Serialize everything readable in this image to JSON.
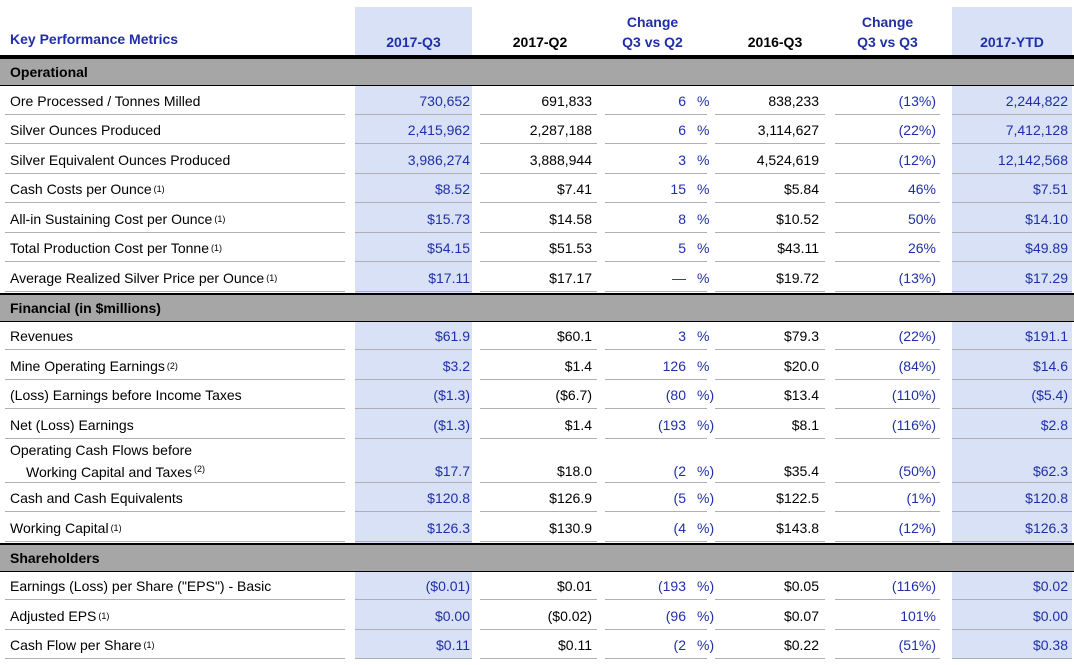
{
  "header": {
    "title": "Key Performance Metrics",
    "col_q3": "2017-Q3",
    "col_q2": "2017-Q2",
    "change1_line1": "Change",
    "change1_line2": "Q3 vs Q2",
    "col_2016q3": "2016-Q3",
    "change2_line1": "Change",
    "change2_line2": "Q3 vs Q3",
    "col_ytd": "2017-YTD"
  },
  "sections": [
    {
      "title": "Operational",
      "rows": [
        {
          "label": "Ore Processed / Tonnes Milled",
          "sup": "",
          "q3": "730,652",
          "q2": "691,833",
          "chg1": "6",
          "chg1_pct": "%",
          "y16": "838,233",
          "chg2": "(13%)",
          "ytd": "2,244,822"
        },
        {
          "label": "Silver Ounces Produced",
          "sup": "",
          "q3": "2,415,962",
          "q2": "2,287,188",
          "chg1": "6",
          "chg1_pct": "%",
          "y16": "3,114,627",
          "chg2": "(22%)",
          "ytd": "7,412,128"
        },
        {
          "label": "Silver Equivalent Ounces Produced",
          "sup": "",
          "q3": "3,986,274",
          "q2": "3,888,944",
          "chg1": "3",
          "chg1_pct": "%",
          "y16": "4,524,619",
          "chg2": "(12%)",
          "ytd": "12,142,568"
        },
        {
          "label": "Cash Costs per Ounce",
          "sup": "(1)",
          "q3": "$8.52",
          "q2": "$7.41",
          "chg1": "15",
          "chg1_pct": "%",
          "y16": "$5.84",
          "chg2": "46%",
          "ytd": "$7.51"
        },
        {
          "label": "All-in Sustaining Cost per Ounce",
          "sup": "(1)",
          "q3": "$15.73",
          "q2": "$14.58",
          "chg1": "8",
          "chg1_pct": "%",
          "y16": "$10.52",
          "chg2": "50%",
          "ytd": "$14.10"
        },
        {
          "label": "Total Production Cost per Tonne",
          "sup": "(1)",
          "q3": "$54.15",
          "q2": "$51.53",
          "chg1": "5",
          "chg1_pct": "%",
          "y16": "$43.11",
          "chg2": "26%",
          "ytd": "$49.89"
        },
        {
          "label": "Average Realized Silver Price per Ounce",
          "sup": "(1)",
          "q3": "$17.11",
          "q2": "$17.17",
          "chg1": "—",
          "chg1_pct": "%",
          "y16": "$19.72",
          "chg2": "(13%)",
          "ytd": "$17.29"
        }
      ]
    },
    {
      "title": "Financial (in $millions)",
      "rows": [
        {
          "label": "Revenues",
          "sup": "",
          "q3": "$61.9",
          "q2": "$60.1",
          "chg1": "3",
          "chg1_pct": "%",
          "y16": "$79.3",
          "chg2": "(22%)",
          "ytd": "$191.1"
        },
        {
          "label": "Mine Operating Earnings",
          "sup": "(2)",
          "q3": "$3.2",
          "q2": "$1.4",
          "chg1": "126",
          "chg1_pct": "%",
          "y16": "$20.0",
          "chg2": "(84%)",
          "ytd": "$14.6"
        },
        {
          "label": "(Loss) Earnings before Income Taxes",
          "sup": "",
          "q3": "($1.3)",
          "q2": "($6.7)",
          "chg1": "(80",
          "chg1_pct": "%)",
          "y16": "$13.4",
          "chg2": "(110%)",
          "ytd": "($5.4)"
        },
        {
          "label": "Net (Loss) Earnings",
          "sup": "",
          "q3": "($1.3)",
          "q2": "$1.4",
          "chg1": "(193",
          "chg1_pct": "%)",
          "y16": "$8.1",
          "chg2": "(116%)",
          "ytd": "$2.8"
        },
        {
          "label": "Operating Cash Flows before",
          "label2": "Working Capital and Taxes",
          "sup": "(2)",
          "q3": "$17.7",
          "q2": "$18.0",
          "chg1": "(2",
          "chg1_pct": "%)",
          "y16": "$35.4",
          "chg2": "(50%)",
          "ytd": "$62.3"
        },
        {
          "label": "Cash and Cash Equivalents",
          "sup": "",
          "q3": "$120.8",
          "q2": "$126.9",
          "chg1": "(5",
          "chg1_pct": "%)",
          "y16": "$122.5",
          "chg2": "(1%)",
          "ytd": "$120.8"
        },
        {
          "label": "Working Capital",
          "sup": "(1)",
          "q3": "$126.3",
          "q2": "$130.9",
          "chg1": "(4",
          "chg1_pct": "%)",
          "y16": "$143.8",
          "chg2": "(12%)",
          "ytd": "$126.3"
        }
      ]
    },
    {
      "title": "Shareholders",
      "rows": [
        {
          "label": "Earnings (Loss) per Share (\"EPS\") - Basic",
          "sup": "",
          "q3": "($0.01)",
          "q2": "$0.01",
          "chg1": "(193",
          "chg1_pct": "%)",
          "y16": "$0.05",
          "chg2": "(116%)",
          "ytd": "$0.02"
        },
        {
          "label": "Adjusted EPS",
          "sup": "(1)",
          "q3": "$0.00",
          "q2": "($0.02)",
          "chg1": "(96",
          "chg1_pct": "%)",
          "y16": "$0.07",
          "chg2": "101%",
          "ytd": "$0.00"
        },
        {
          "label": "Cash Flow per Share",
          "sup": "(1)",
          "q3": "$0.11",
          "q2": "$0.11",
          "chg1": "(2",
          "chg1_pct": "%)",
          "y16": "$0.22",
          "chg2": "(51%)",
          "ytd": "$0.38"
        }
      ]
    }
  ],
  "colors": {
    "shade": "#d9e1f6",
    "section": "#a6a6a6",
    "blue": "#1f2fa8"
  }
}
